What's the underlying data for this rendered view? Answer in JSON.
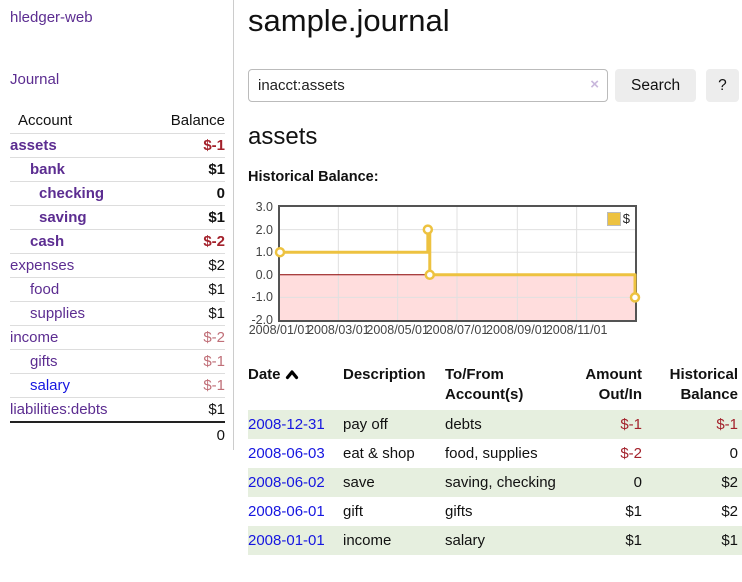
{
  "colors": {
    "link_purple": "#5c2d91",
    "link_blue": "#1616e0",
    "negative_strong": "#a3212b",
    "negative_soft": "#c06f78",
    "stripe_green": "#e6efdf",
    "accent_gold": "#edc240",
    "chart_negative_fill": "#ffdddd",
    "chart_zero_line": "#8b0000"
  },
  "sidebar": {
    "brand": "hledger-web",
    "journal_label": "Journal",
    "table": {
      "col_account": "Account",
      "col_balance": "Balance",
      "rows": [
        {
          "account": "assets",
          "balance": "$-1",
          "depth": 1,
          "bold": true,
          "neg": "strong"
        },
        {
          "account": "bank",
          "balance": "$1",
          "depth": 2,
          "bold": true
        },
        {
          "account": "checking",
          "balance": "0",
          "depth": 3,
          "bold": true
        },
        {
          "account": "saving",
          "balance": "$1",
          "depth": 3,
          "bold": true
        },
        {
          "account": "cash",
          "balance": "$-2",
          "depth": 2,
          "bold": true,
          "neg": "strong"
        },
        {
          "account": "expenses",
          "balance": "$2",
          "depth": 1
        },
        {
          "account": "food",
          "balance": "$1",
          "depth": 2
        },
        {
          "account": "supplies",
          "balance": "$1",
          "depth": 2
        },
        {
          "account": "income",
          "balance": "$-2",
          "depth": 1,
          "neg": "soft"
        },
        {
          "account": "gifts",
          "balance": "$-1",
          "depth": 2,
          "neg": "soft"
        },
        {
          "account": "salary",
          "balance": "$-1",
          "depth": 2,
          "neg": "soft",
          "link": "blue"
        },
        {
          "account": "liabilities:debts",
          "balance": "$1",
          "depth": 1
        }
      ],
      "total": "0"
    }
  },
  "header": {
    "title": "sample.journal"
  },
  "search": {
    "query": "inacct:assets",
    "clear_icon": "×",
    "button_label": "Search",
    "help_label": "?"
  },
  "account": {
    "heading": "assets",
    "chart_label": "Historical Balance:"
  },
  "chart_data": {
    "type": "line",
    "step": true,
    "title": "Historical Balance",
    "series": [
      {
        "name": "$",
        "color": "#edc240",
        "points": [
          [
            "2008-01-01",
            1.0
          ],
          [
            "2008-06-01",
            2.0
          ],
          [
            "2008-06-03",
            0.0
          ],
          [
            "2008-12-31",
            -1.0
          ]
        ]
      }
    ],
    "x_range": [
      "2008-01-01",
      "2008-12-31"
    ],
    "x_ticks": [
      "2008/01/01",
      "2008/03/01",
      "2008/05/01",
      "2008/07/01",
      "2008/09/01",
      "2008/11/01"
    ],
    "y_ticks": [
      "3.0",
      "2.0",
      "1.0",
      "0.0",
      "-1.0",
      "-2.0"
    ],
    "ylim": [
      -2,
      3
    ],
    "grid": true,
    "legend_position": "top-right",
    "negative_region_color": "#ffdddd",
    "zero_line_color": "#8b0000"
  },
  "register": {
    "columns": [
      "Date",
      "Description",
      "To/From Account(s)",
      "Amount Out/In",
      "Historical Balance"
    ],
    "sort": "ascending",
    "rows": [
      {
        "date": "2008-12-31",
        "description": "pay off",
        "accounts": "debts",
        "amount": "$-1",
        "amount_neg": true,
        "balance": "$-1",
        "balance_neg": true
      },
      {
        "date": "2008-06-03",
        "description": "eat & shop",
        "accounts": "food, supplies",
        "amount": "$-2",
        "amount_neg": true,
        "balance": "0",
        "balance_neg": false
      },
      {
        "date": "2008-06-02",
        "description": "save",
        "accounts": "saving, checking",
        "amount": "0",
        "amount_neg": false,
        "balance": "$2",
        "balance_neg": false
      },
      {
        "date": "2008-06-01",
        "description": "gift",
        "accounts": "gifts",
        "amount": "$1",
        "amount_neg": false,
        "balance": "$2",
        "balance_neg": false
      },
      {
        "date": "2008-01-01",
        "description": "income",
        "accounts": "salary",
        "amount": "$1",
        "amount_neg": false,
        "balance": "$1",
        "balance_neg": false
      }
    ]
  }
}
